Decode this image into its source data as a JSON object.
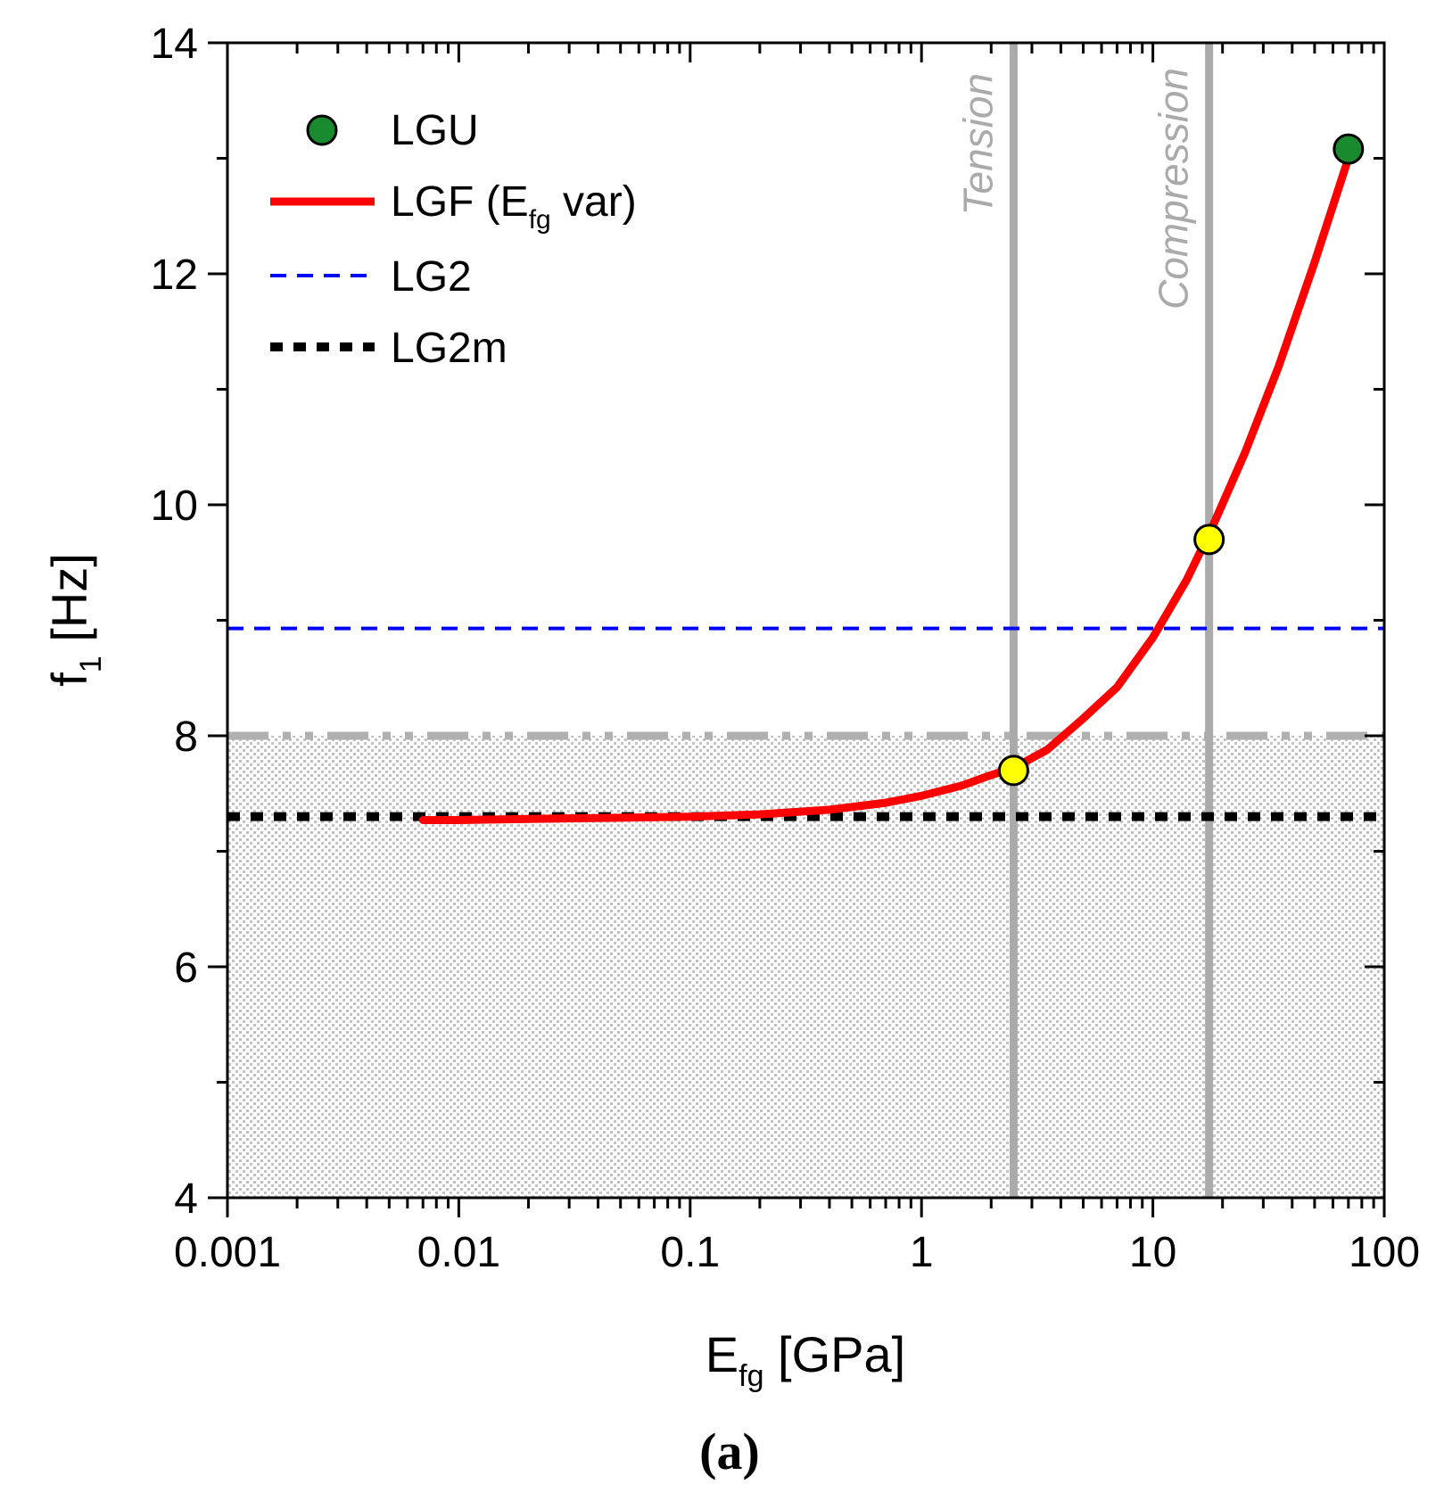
{
  "chart_data": {
    "type": "line",
    "xscale": "log",
    "xlim": [
      0.001,
      100
    ],
    "ylim": [
      4,
      14
    ],
    "xticks": [
      0.001,
      0.01,
      0.1,
      1,
      10,
      100
    ],
    "xtick_labels": [
      "0.001",
      "0.01",
      "0.1",
      "1",
      "10",
      "100"
    ],
    "yticks": [
      4,
      6,
      8,
      10,
      12,
      14
    ],
    "ytick_labels": [
      "4",
      "6",
      "8",
      "10",
      "12",
      "14"
    ],
    "yminor_ticks": [
      5,
      7,
      9,
      11,
      13
    ],
    "xlabel": {
      "main": "E",
      "sub": "fg",
      "tail": " [GPa]"
    },
    "ylabel": {
      "main": "f",
      "sub": "1",
      "tail": " [Hz]"
    },
    "caption": "(a)",
    "legend_position": "top-left",
    "legend": [
      {
        "key": "LGU",
        "label": "LGU"
      },
      {
        "key": "LGF",
        "label": "LGF (E",
        "sub": "fg",
        "tail": " var)"
      },
      {
        "key": "LG2",
        "label": "LG2"
      },
      {
        "key": "LG2m",
        "label": "LG2m"
      }
    ],
    "series": [
      {
        "name": "LGF (Efg var)",
        "style": "solid",
        "color": "#ff0000",
        "x": [
          0.007,
          0.01,
          0.02,
          0.05,
          0.1,
          0.2,
          0.4,
          0.7,
          1.0,
          1.5,
          2.0,
          2.5,
          3.5,
          5.0,
          7.0,
          10.0,
          14.0,
          18.0,
          25.0,
          35.0,
          50.0,
          70.0
        ],
        "y": [
          7.27,
          7.27,
          7.28,
          7.29,
          7.3,
          7.32,
          7.36,
          7.42,
          7.48,
          7.57,
          7.66,
          7.72,
          7.88,
          8.15,
          8.42,
          8.85,
          9.35,
          9.8,
          10.45,
          11.2,
          12.1,
          13.0
        ]
      },
      {
        "name": "LG2",
        "style": "dashed",
        "color": "#0000ff",
        "y_const": 8.93
      },
      {
        "name": "LG2m",
        "style": "dotted",
        "color": "#000000",
        "y_const": 7.3
      }
    ],
    "points": [
      {
        "name": "LGU",
        "x": 70,
        "y": 13.08,
        "color": "#1a8a2e"
      },
      {
        "name": "tension-point",
        "x": 2.5,
        "y": 7.7,
        "color": "#ffff00"
      },
      {
        "name": "compression-point",
        "x": 17.5,
        "y": 9.7,
        "color": "#ffff00"
      }
    ],
    "vertical_lines": [
      {
        "name": "tension",
        "x": 2.5,
        "label": "Tension",
        "color": "#aaaaaa"
      },
      {
        "name": "compression",
        "x": 17.5,
        "label": "Compression",
        "color": "#aaaaaa"
      }
    ],
    "threshold_line": {
      "y": 8.0,
      "style": "dash-dot",
      "color": "#b0b0b0"
    },
    "shaded_region": {
      "y0": 4,
      "y1": 8,
      "pattern": "dots"
    }
  }
}
